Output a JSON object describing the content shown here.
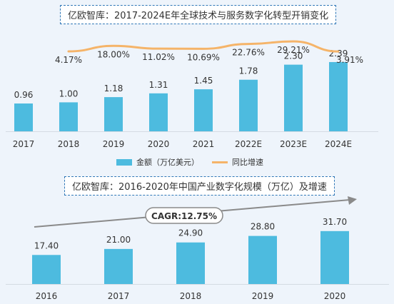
{
  "colors": {
    "bar": "#4dbbdf",
    "line": "#f5b469",
    "cagr_arrow": "#8a8a8a",
    "title_border": "#2f77b7"
  },
  "chart_data": [
    {
      "type": "bar",
      "title": "亿欧智库：2017-2024E年全球技术与服务数字化转型开销变化",
      "categories": [
        "2017",
        "2018",
        "2019",
        "2020",
        "2021",
        "2022E",
        "2023E",
        "2024E"
      ],
      "series": [
        {
          "name": "金额（万亿美元）",
          "type": "bar",
          "values": [
            0.96,
            1.0,
            1.18,
            1.31,
            1.45,
            1.78,
            2.3,
            2.39
          ],
          "labels": [
            "0.96",
            "1.00",
            "1.18",
            "1.31",
            "1.45",
            "1.78",
            "2.30",
            "2.39"
          ]
        },
        {
          "name": "同比增速",
          "type": "line",
          "values": [
            null,
            4.17,
            18.0,
            11.02,
            10.69,
            22.76,
            29.21,
            3.91
          ],
          "labels": [
            "",
            "4.17%",
            "18.00%",
            "11.02%",
            "10.69%",
            "22.76%",
            "29.21%",
            "3.91%"
          ]
        }
      ],
      "legend": {
        "position": "bottom"
      }
    },
    {
      "type": "bar",
      "title": "亿欧智库：2016-2020年中国产业数字化规模（万亿）及增速",
      "categories": [
        "2016",
        "2017",
        "2018",
        "2019",
        "2020"
      ],
      "series": [
        {
          "values": [
            17.4,
            21.0,
            24.9,
            28.8,
            31.7
          ],
          "labels": [
            "17.40",
            "21.00",
            "24.90",
            "28.80",
            "31.70"
          ]
        }
      ],
      "annotation": "CAGR:12.75%"
    }
  ]
}
